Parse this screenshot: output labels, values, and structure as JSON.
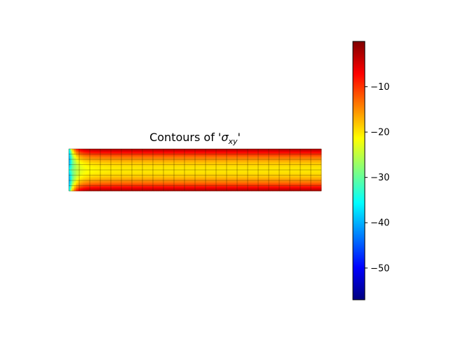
{
  "chart_data": {
    "type": "heatmap",
    "title_prefix": "Contours of '",
    "title_symbol": "σ",
    "title_subscript": "xy",
    "title_suffix": "'",
    "colormap": "jet",
    "mesh": {
      "columns": 24,
      "rows": 8
    },
    "xlim": [
      0,
      24
    ],
    "ylim": [
      0,
      4
    ],
    "colorbar": {
      "range": [
        -57,
        0
      ],
      "ticks": [
        -10,
        -20,
        -30,
        -40,
        -50
      ],
      "tick_labels": [
        "−10",
        "−20",
        "−30",
        "−40",
        "−50"
      ]
    },
    "field": {
      "description_values": "sigma_xy(x, y) ≈ edge -1.5 at top/bottom rows, -20 at mid-height; singular end near x=0 reaching about -57",
      "max": -1,
      "mid_height_min": -20,
      "end_min": -57
    }
  }
}
